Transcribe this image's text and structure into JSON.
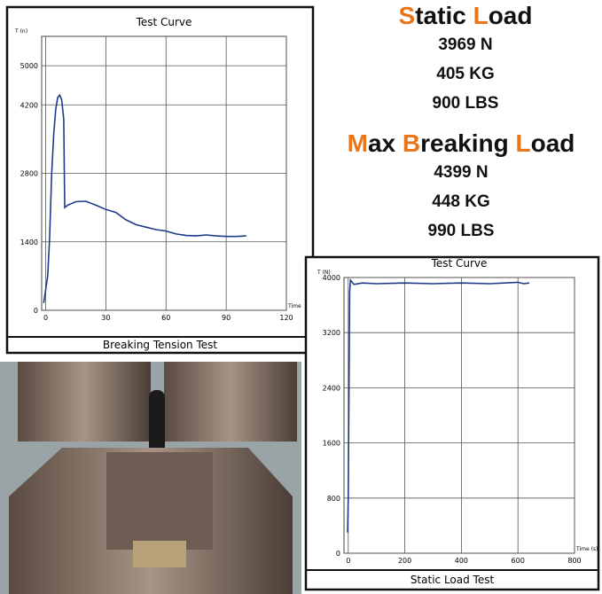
{
  "chart_data": [
    {
      "type": "line",
      "title": "Test Curve",
      "caption": "Breaking Tension Test",
      "x_label": "Time",
      "y_label": "T (n)",
      "x": [
        -1,
        1,
        2,
        3,
        4,
        5,
        6,
        7,
        8,
        9,
        9.5,
        11,
        15,
        20,
        25,
        30,
        35,
        40,
        45,
        50,
        55,
        60,
        65,
        70,
        75,
        80,
        85,
        90,
        95,
        100
      ],
      "values": [
        150,
        700,
        1500,
        2800,
        3600,
        4100,
        4350,
        4399,
        4300,
        3900,
        2100,
        2150,
        2220,
        2230,
        2150,
        2060,
        2000,
        1850,
        1750,
        1700,
        1650,
        1620,
        1560,
        1530,
        1520,
        1540,
        1520,
        1510,
        1510,
        1520
      ],
      "color": "#1f3a8a",
      "xlim": [
        -2,
        120
      ],
      "xticks": [
        0,
        30,
        60,
        90,
        120
      ],
      "ylim": [
        0,
        5600
      ],
      "yticks": [
        0,
        1400,
        2800,
        4200,
        5000
      ],
      "grid": true
    },
    {
      "type": "line",
      "title": "Test Curve",
      "caption": "Static Load Test",
      "x_label": "Time (s)",
      "y_label": "T (N)",
      "x": [
        -2,
        0,
        2,
        4,
        5,
        8,
        20,
        50,
        100,
        200,
        300,
        400,
        500,
        600,
        620,
        640
      ],
      "values": [
        300,
        800,
        2000,
        3200,
        3800,
        3960,
        3900,
        3920,
        3910,
        3920,
        3910,
        3920,
        3910,
        3930,
        3910,
        3920
      ],
      "color": "#1f3a8a",
      "xlim": [
        -15,
        800
      ],
      "xticks": [
        0,
        200,
        400,
        600,
        800
      ],
      "ylim": [
        0,
        4000
      ],
      "yticks": [
        0,
        800,
        1600,
        2400,
        3200,
        4000
      ],
      "grid": true
    }
  ],
  "static_load": {
    "title_parts": [
      "S",
      "tatic ",
      "L",
      "oad"
    ],
    "values": [
      "3969 N",
      "405 KG",
      "900 LBS"
    ]
  },
  "max_breaking_load": {
    "title_parts": [
      "M",
      "ax ",
      "B",
      "reaking ",
      "L",
      "oad"
    ],
    "values": [
      "4399 N",
      "448 KG",
      "990 LBS"
    ]
  }
}
